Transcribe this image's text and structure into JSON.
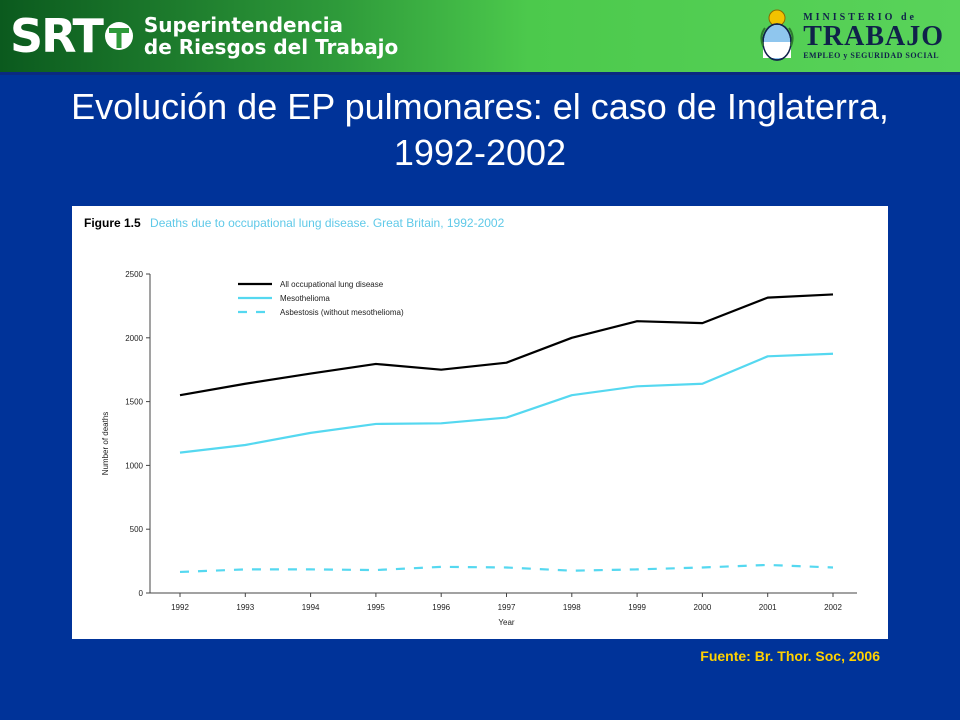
{
  "header": {
    "logo_text": "SRT",
    "org_line1": "Superintendencia",
    "org_line2": "de Riesgos del Trabajo",
    "ministry_top": "MINISTERIO de",
    "ministry_main": "TRABAJO",
    "ministry_sub": "EMPLEO y SEGURIDAD SOCIAL"
  },
  "slide": {
    "title": "Evolución de EP pulmonares: el caso de Inglaterra, 1992-2002",
    "source": "Fuente: Br. Thor. Soc, 2006"
  },
  "figure": {
    "label": "Figure 1.5",
    "caption": "Deaths due to occupational lung disease. Great Britain, 1992-2002"
  },
  "chart_data": {
    "type": "line",
    "title": "Deaths due to occupational lung disease. Great Britain, 1992-2002",
    "xlabel": "Year",
    "ylabel": "Number of deaths",
    "categories": [
      "1992",
      "1993",
      "1994",
      "1995",
      "1996",
      "1997",
      "1998",
      "1999",
      "2000",
      "2001",
      "2002"
    ],
    "ylim": [
      0,
      2500
    ],
    "yticks": [
      0,
      500,
      1000,
      1500,
      2000,
      2500
    ],
    "grid": false,
    "legend_position": "top-left",
    "series": [
      {
        "name": "All occupational lung disease",
        "color": "#000000",
        "dash": "solid",
        "values": [
          1550,
          1640,
          1720,
          1795,
          1750,
          1805,
          2000,
          2130,
          2115,
          2315,
          2340
        ]
      },
      {
        "name": "Mesothelioma",
        "color": "#55d8f0",
        "dash": "solid",
        "values": [
          1100,
          1160,
          1255,
          1325,
          1330,
          1375,
          1550,
          1620,
          1640,
          1855,
          1875
        ]
      },
      {
        "name": "Asbestosis (without mesothelioma)",
        "color": "#55d8f0",
        "dash": "dashed",
        "values": [
          165,
          185,
          185,
          180,
          205,
          200,
          175,
          185,
          200,
          220,
          200
        ]
      }
    ]
  }
}
